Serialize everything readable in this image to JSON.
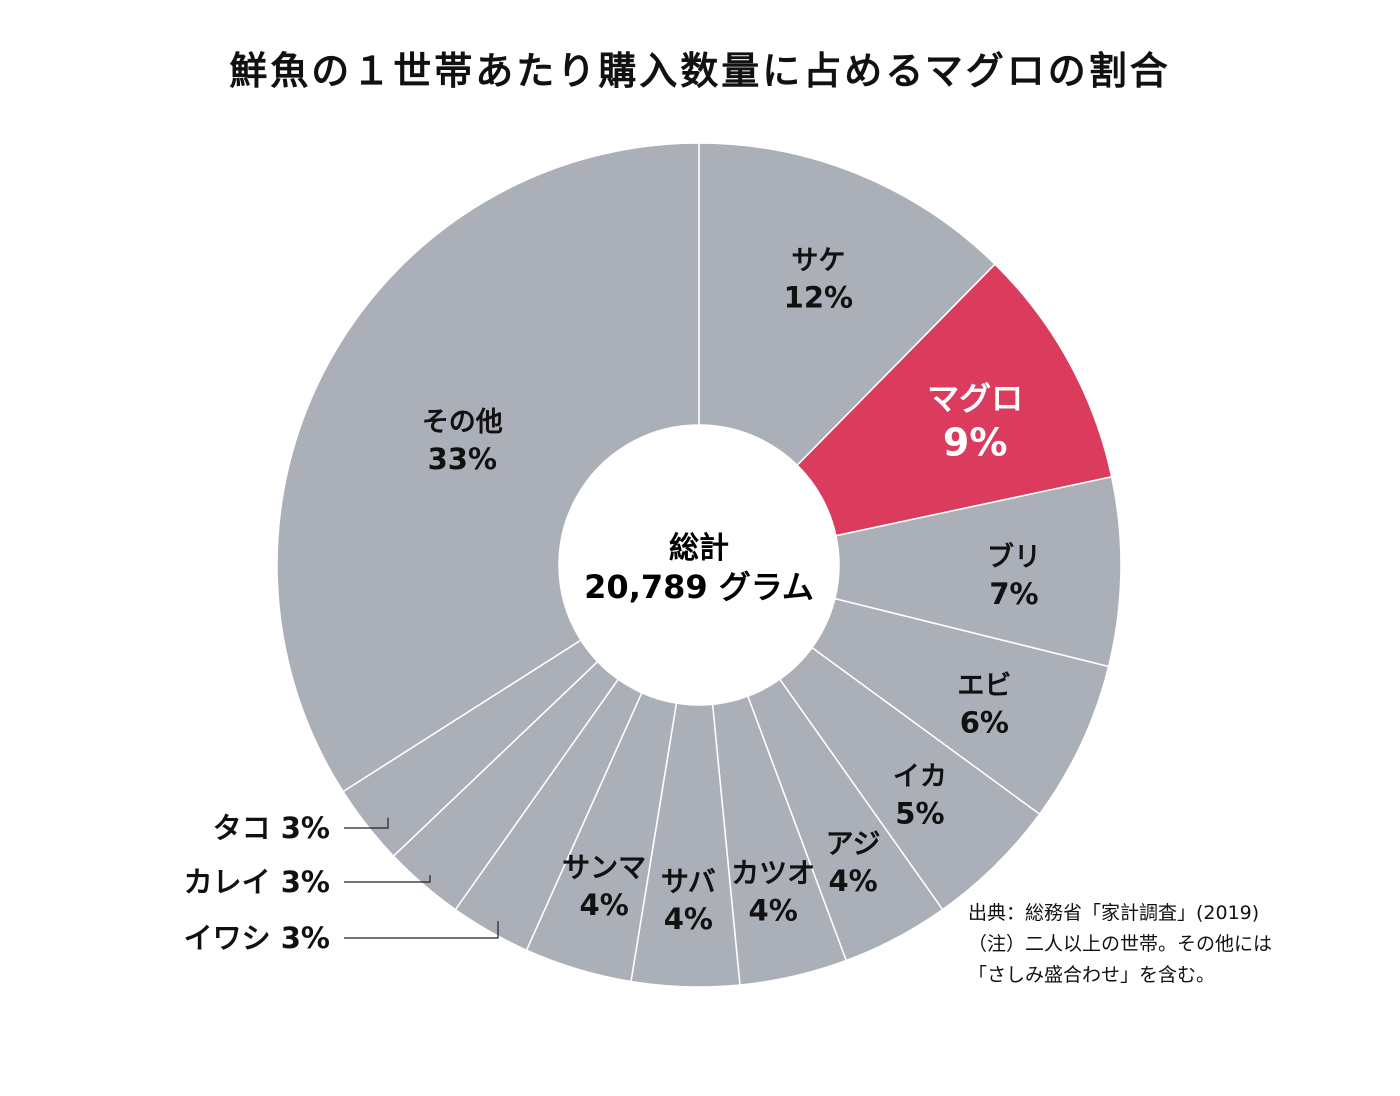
{
  "chart_data": {
    "type": "donut",
    "title": "鮮魚の１世帯あたり購入数量に占めるマグロの割合",
    "center": {
      "label": "総計",
      "value": "20,789 グラム"
    },
    "colors": {
      "default": "#abafb8",
      "highlight": "#db3c5e",
      "border": "#ffffff"
    },
    "slices": [
      {
        "name": "サケ",
        "value": 12,
        "label": "12%"
      },
      {
        "name": "マグロ",
        "value": 9,
        "label": "9%",
        "highlight": true
      },
      {
        "name": "ブリ",
        "value": 7,
        "label": "7%"
      },
      {
        "name": "エビ",
        "value": 6,
        "label": "6%"
      },
      {
        "name": "イカ",
        "value": 5,
        "label": "5%"
      },
      {
        "name": "アジ",
        "value": 4,
        "label": "4%"
      },
      {
        "name": "カツオ",
        "value": 4,
        "label": "4%"
      },
      {
        "name": "サバ",
        "value": 4,
        "label": "4%"
      },
      {
        "name": "サンマ",
        "value": 4,
        "label": "4%"
      },
      {
        "name": "イワシ",
        "value": 3,
        "label": "3%"
      },
      {
        "name": "カレイ",
        "value": 3,
        "label": "3%"
      },
      {
        "name": "タコ",
        "value": 3,
        "label": "3%"
      },
      {
        "name": "その他",
        "value": 33,
        "label": "33%"
      }
    ]
  },
  "footnote": [
    "出典：総務省「家計調査」(2019)",
    "（注）二人以上の世帯。その他には",
    "「さしみ盛合わせ」を含む。"
  ]
}
